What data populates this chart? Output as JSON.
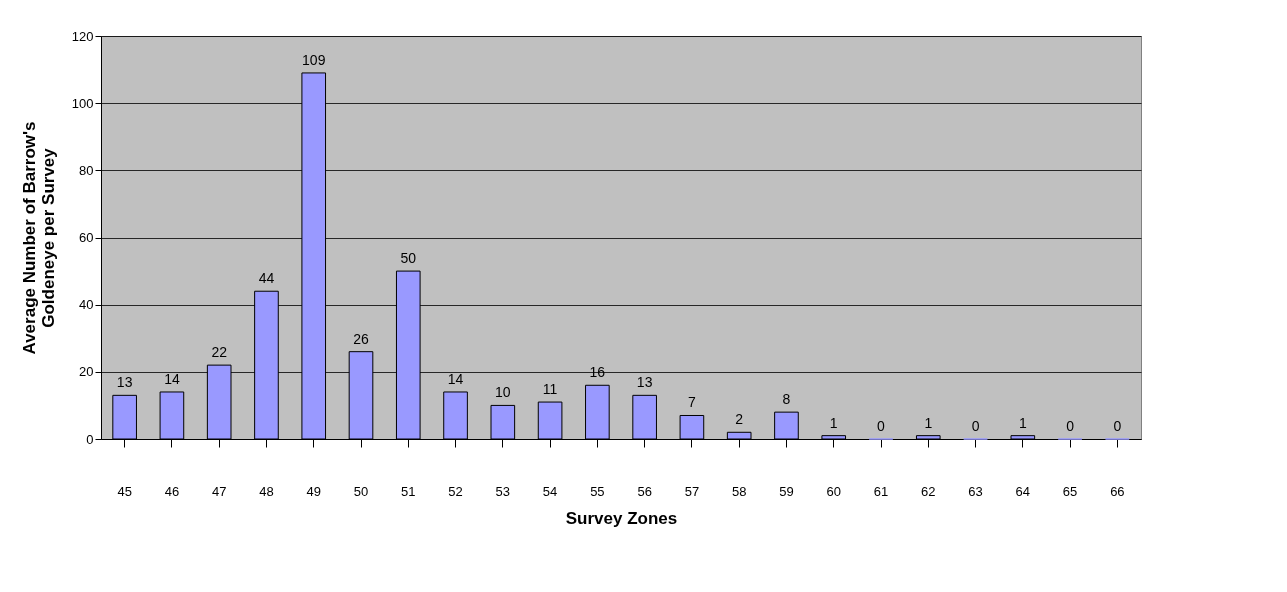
{
  "chart_data": {
    "type": "bar",
    "xlabel": "Survey Zones",
    "ylabel": "Average Number of Barrow's Goldeneye per Survey",
    "categories": [
      "45",
      "46",
      "47",
      "48",
      "49",
      "50",
      "51",
      "52",
      "53",
      "54",
      "55",
      "56",
      "57",
      "58",
      "59",
      "60",
      "61",
      "62",
      "63",
      "64",
      "65",
      "66"
    ],
    "values": [
      13,
      14,
      22,
      44,
      109,
      26,
      50,
      14,
      10,
      11,
      16,
      13,
      7,
      2,
      8,
      1,
      0,
      1,
      0,
      1,
      0,
      0
    ],
    "color": "#9999ff",
    "ylim": [
      0,
      120
    ],
    "yticks": [
      0,
      20,
      40,
      60,
      80,
      100,
      120
    ],
    "grid": "y",
    "data_labels": true
  }
}
